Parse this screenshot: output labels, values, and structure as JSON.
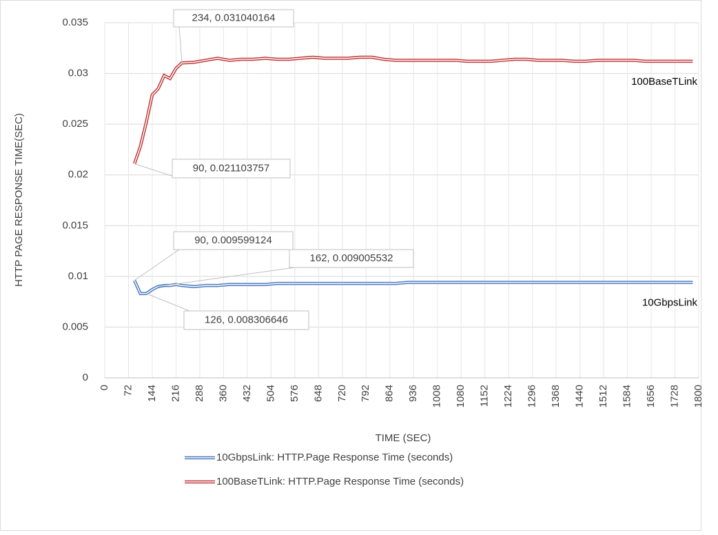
{
  "chart_data": {
    "type": "line",
    "xlabel": "TIME (SEC)",
    "ylabel": "HTTP PAGE RESPONSE TIME(SEC)",
    "x": [
      90,
      108,
      126,
      144,
      162,
      180,
      198,
      216,
      234,
      270,
      306,
      342,
      378,
      414,
      450,
      486,
      522,
      558,
      594,
      630,
      666,
      702,
      738,
      774,
      810,
      846,
      882,
      918,
      954,
      990,
      1026,
      1062,
      1098,
      1134,
      1170,
      1206,
      1242,
      1278,
      1314,
      1350,
      1386,
      1422,
      1458,
      1494,
      1530,
      1566,
      1602,
      1638,
      1674,
      1710,
      1746,
      1782
    ],
    "series": [
      {
        "name": "10GbpsLink: HTTP.Page Response Time (seconds)",
        "label": "10GbpsLink",
        "color": "#4a7bbf",
        "values": [
          0.009599124,
          0.0083,
          0.008306646,
          0.0087,
          0.009005532,
          0.0091,
          0.0091,
          0.0092,
          0.0091,
          0.009,
          0.0091,
          0.0091,
          0.0092,
          0.0092,
          0.0092,
          0.0092,
          0.0093,
          0.0093,
          0.0093,
          0.0093,
          0.0093,
          0.0093,
          0.0093,
          0.0093,
          0.0093,
          0.0093,
          0.0093,
          0.0094,
          0.0094,
          0.0094,
          0.0094,
          0.0094,
          0.0094,
          0.0094,
          0.0094,
          0.0094,
          0.0094,
          0.0094,
          0.0094,
          0.0094,
          0.0094,
          0.0094,
          0.0094,
          0.0094,
          0.0094,
          0.0094,
          0.0094,
          0.0094,
          0.0094,
          0.0094,
          0.0094,
          0.0094
        ]
      },
      {
        "name": "100BaseTLink: HTTP.Page Response Time (seconds)",
        "label": "100BaseTLink",
        "color": "#c0393b",
        "values": [
          0.021103757,
          0.0228,
          0.0252,
          0.0279,
          0.0285,
          0.0298,
          0.0295,
          0.0305,
          0.031040164,
          0.0311,
          0.0313,
          0.0315,
          0.0313,
          0.0314,
          0.0314,
          0.0315,
          0.0314,
          0.0314,
          0.0315,
          0.0316,
          0.0315,
          0.0315,
          0.0315,
          0.0316,
          0.0316,
          0.0314,
          0.0313,
          0.0313,
          0.0313,
          0.0313,
          0.0313,
          0.0313,
          0.0312,
          0.0312,
          0.0312,
          0.0313,
          0.0314,
          0.0314,
          0.0313,
          0.0313,
          0.0313,
          0.0312,
          0.0312,
          0.0313,
          0.0313,
          0.0313,
          0.0313,
          0.0312,
          0.0312,
          0.0312,
          0.0312,
          0.0312
        ]
      }
    ],
    "annotations": [
      {
        "text": "234, 0.031040164",
        "x": 234,
        "y": 0.031040164
      },
      {
        "text": "90, 0.021103757",
        "x": 90,
        "y": 0.021103757
      },
      {
        "text": "90, 0.009599124",
        "x": 90,
        "y": 0.009599124
      },
      {
        "text": "162, 0.009005532",
        "x": 162,
        "y": 0.009005532
      },
      {
        "text": "126, 0.008306646",
        "x": 126,
        "y": 0.008306646
      }
    ],
    "xlim": [
      0,
      1800
    ],
    "xticks": [
      0,
      72,
      144,
      216,
      288,
      360,
      432,
      504,
      576,
      648,
      720,
      792,
      864,
      936,
      1008,
      1080,
      1152,
      1224,
      1296,
      1368,
      1440,
      1512,
      1584,
      1656,
      1728,
      1800
    ],
    "ylim": [
      0,
      0.035
    ],
    "yticks": [
      0,
      0.005,
      0.01,
      0.015,
      0.02,
      0.025,
      0.03,
      0.035
    ],
    "grid": true
  }
}
